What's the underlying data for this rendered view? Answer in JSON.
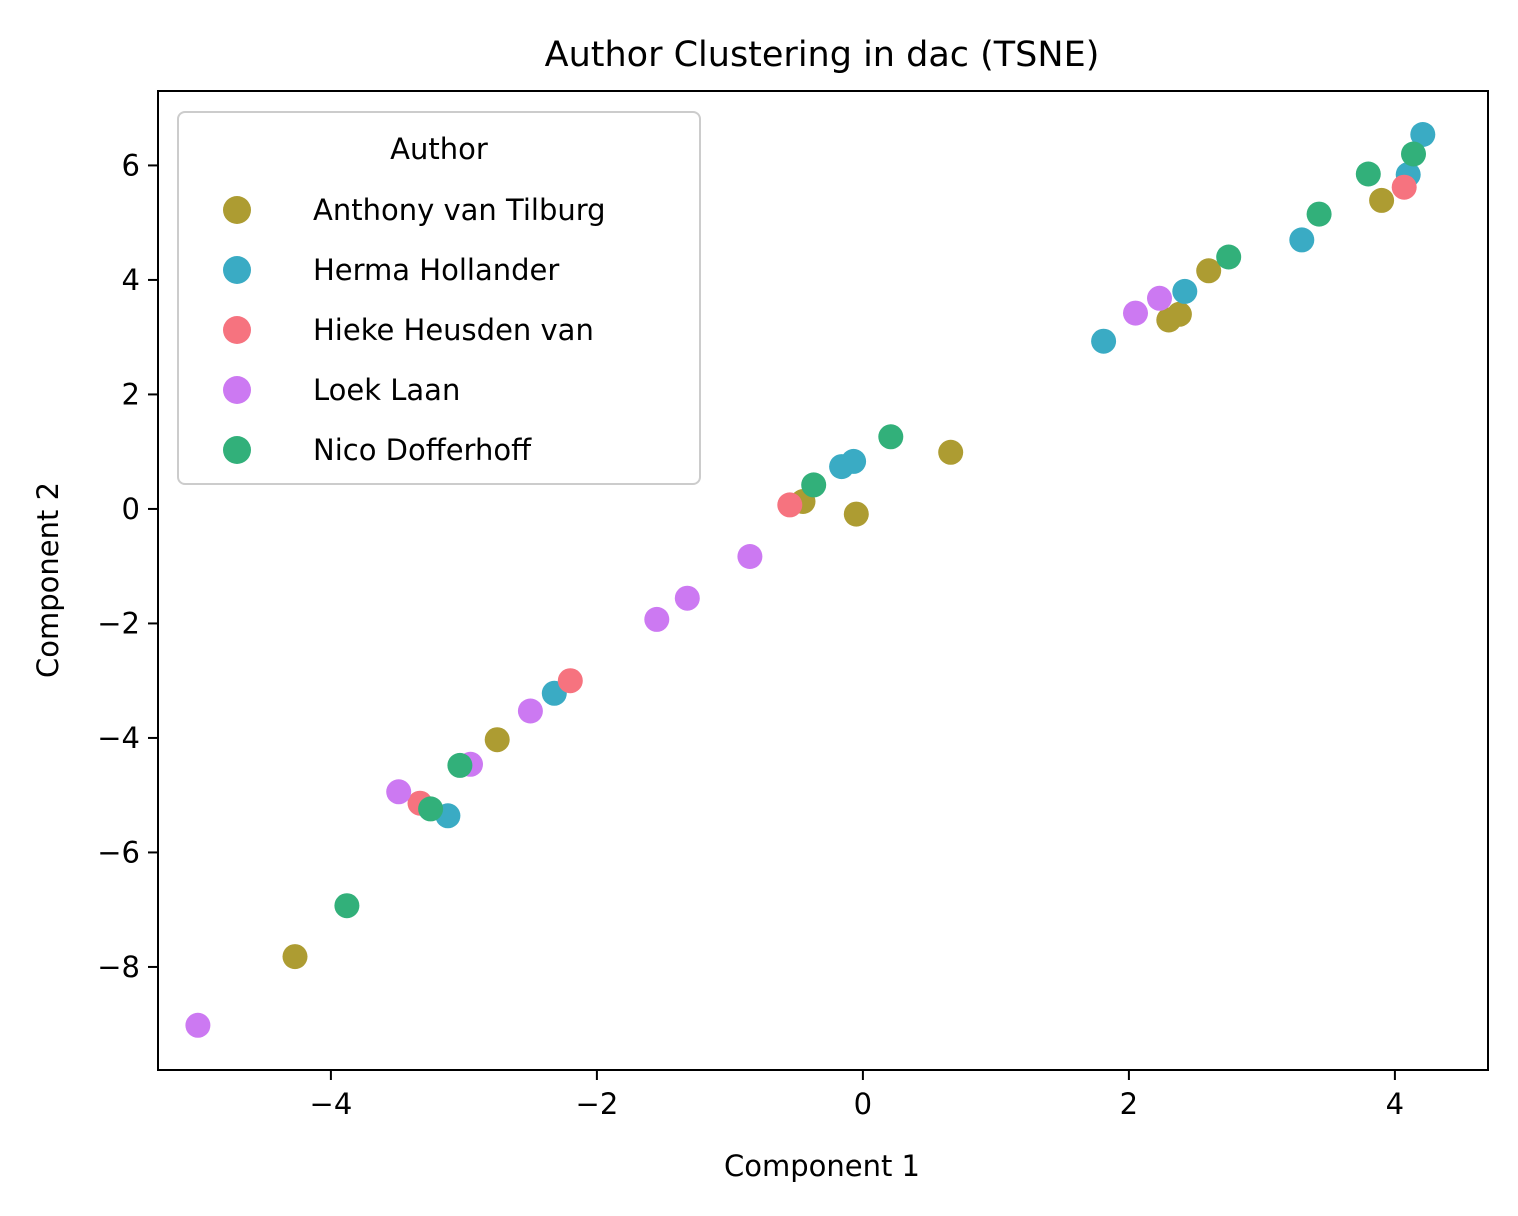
{
  "chart_data": {
    "type": "scatter",
    "title": "Author Clustering in dac (TSNE)",
    "xlabel": "Component 1",
    "ylabel": "Component 2",
    "xlim": [
      -5.3,
      4.7
    ],
    "ylim": [
      -9.8,
      7.3
    ],
    "x_ticks": [
      {
        "value": -4,
        "label": "−4"
      },
      {
        "value": -2,
        "label": "−2"
      },
      {
        "value": 0,
        "label": "0"
      },
      {
        "value": 2,
        "label": "2"
      },
      {
        "value": 4,
        "label": "4"
      }
    ],
    "y_ticks": [
      {
        "value": 6,
        "label": "6"
      },
      {
        "value": 4,
        "label": "4"
      },
      {
        "value": 2,
        "label": "2"
      },
      {
        "value": 0,
        "label": "0"
      },
      {
        "value": -2,
        "label": "−2"
      },
      {
        "value": -4,
        "label": "−4"
      },
      {
        "value": -6,
        "label": "−6"
      },
      {
        "value": -8,
        "label": "−8"
      }
    ],
    "grid": false,
    "legend": {
      "title": "Author",
      "placement": "top-left"
    },
    "series": [
      {
        "name": "Anthony van Tilburg",
        "color": "#ad9c32",
        "points": [
          [
            -4.27,
            -7.82
          ],
          [
            -2.75,
            -4.03
          ],
          [
            -0.45,
            0.13
          ],
          [
            -0.05,
            -0.09
          ],
          [
            0.66,
            0.99
          ],
          [
            2.3,
            3.3
          ],
          [
            2.38,
            3.4
          ],
          [
            2.6,
            4.16
          ],
          [
            3.9,
            5.39
          ]
        ]
      },
      {
        "name": "Herma Hollander",
        "color": "#3aabc4",
        "points": [
          [
            -3.12,
            -5.36
          ],
          [
            -2.32,
            -3.22
          ],
          [
            -0.16,
            0.74
          ],
          [
            -0.07,
            0.83
          ],
          [
            1.81,
            2.93
          ],
          [
            2.42,
            3.8
          ],
          [
            3.3,
            4.7
          ],
          [
            4.1,
            5.84
          ],
          [
            4.21,
            6.54
          ]
        ]
      },
      {
        "name": "Hieke Heusden van",
        "color": "#f6737f",
        "points": [
          [
            -3.33,
            -5.14
          ],
          [
            -2.2,
            -3.0
          ],
          [
            -0.55,
            0.07
          ],
          [
            4.07,
            5.62
          ]
        ]
      },
      {
        "name": "Loek Laan",
        "color": "#cc79f2",
        "points": [
          [
            -5.0,
            -9.02
          ],
          [
            -3.49,
            -4.94
          ],
          [
            -2.95,
            -4.46
          ],
          [
            -2.5,
            -3.53
          ],
          [
            -1.55,
            -1.93
          ],
          [
            -1.32,
            -1.56
          ],
          [
            -0.85,
            -0.83
          ],
          [
            2.05,
            3.42
          ],
          [
            2.23,
            3.68
          ]
        ]
      },
      {
        "name": "Nico Dofferhoff",
        "color": "#32b07a",
        "points": [
          [
            -3.88,
            -6.93
          ],
          [
            -3.25,
            -5.24
          ],
          [
            -3.03,
            -4.48
          ],
          [
            -0.37,
            0.42
          ],
          [
            0.21,
            1.26
          ],
          [
            2.75,
            4.4
          ],
          [
            3.43,
            5.15
          ],
          [
            3.8,
            5.85
          ],
          [
            4.14,
            6.2
          ]
        ]
      }
    ]
  }
}
